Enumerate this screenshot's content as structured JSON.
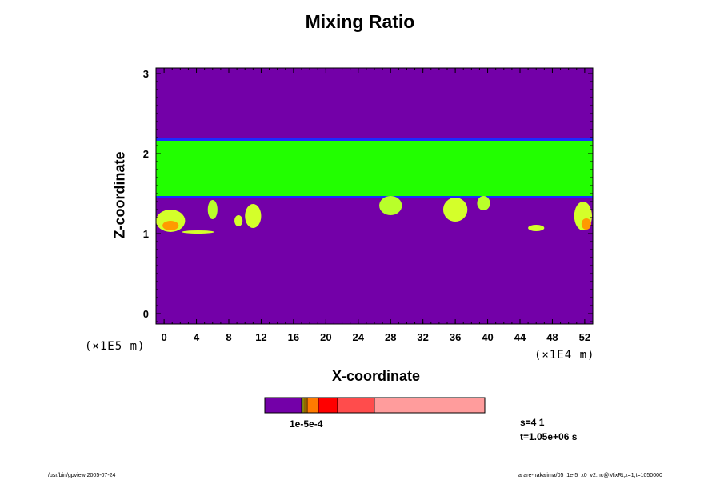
{
  "chart_data": {
    "type": "heatmap",
    "title": "Mixing Ratio",
    "xlabel": "X-coordinate",
    "ylabel": "Z-coordinate",
    "x_unit": "(×1E4 m)",
    "y_unit": "(×1E5 m)",
    "xlim": [
      -1,
      53
    ],
    "ylim": [
      -0.13,
      3.07
    ],
    "x_ticks": [
      0,
      4,
      8,
      12,
      16,
      20,
      24,
      28,
      32,
      36,
      40,
      44,
      48,
      52
    ],
    "x_tick_labels": [
      "0",
      "4",
      "8",
      "12",
      "16",
      "20",
      "24",
      "28",
      "32",
      "36",
      "40",
      "44",
      "48",
      "52"
    ],
    "y_ticks": [
      0,
      1,
      2,
      3
    ],
    "y_tick_labels": [
      "0",
      "1",
      "2",
      "3"
    ],
    "background_color": "#7300a8",
    "band": {
      "z_bottom": 1.46,
      "z_top": 2.17,
      "color": "#22ff00",
      "edge_color": "#1a2cff"
    },
    "blobs": [
      {
        "x": 0.8,
        "z": 1.16,
        "rx": 1.8,
        "rz": 0.14,
        "color": "#d4ff2a"
      },
      {
        "x": 0.8,
        "z": 1.1,
        "rx": 1.0,
        "rz": 0.06,
        "color": "#ff9a00"
      },
      {
        "x": 4.2,
        "z": 1.02,
        "rx": 2.0,
        "rz": 0.02,
        "color": "#d4ff2a"
      },
      {
        "x": 11.0,
        "z": 1.22,
        "rx": 1.0,
        "rz": 0.15,
        "color": "#d4ff2a"
      },
      {
        "x": 9.2,
        "z": 1.16,
        "rx": 0.5,
        "rz": 0.07,
        "color": "#d4ff2a"
      },
      {
        "x": 6.0,
        "z": 1.3,
        "rx": 0.6,
        "rz": 0.12,
        "color": "#b9ff2a"
      },
      {
        "x": 28.0,
        "z": 1.35,
        "rx": 1.4,
        "rz": 0.12,
        "color": "#b9ff2a"
      },
      {
        "x": 36.0,
        "z": 1.3,
        "rx": 1.5,
        "rz": 0.15,
        "color": "#d4ff2a"
      },
      {
        "x": 39.5,
        "z": 1.38,
        "rx": 0.8,
        "rz": 0.09,
        "color": "#b9ff2a"
      },
      {
        "x": 46.0,
        "z": 1.07,
        "rx": 1.0,
        "rz": 0.04,
        "color": "#d4ff2a"
      },
      {
        "x": 51.8,
        "z": 1.22,
        "rx": 1.1,
        "rz": 0.18,
        "color": "#d4ff2a"
      },
      {
        "x": 52.2,
        "z": 1.12,
        "rx": 0.6,
        "rz": 0.07,
        "color": "#ff9a00"
      }
    ],
    "colorbar": {
      "label": "1e-5e-4",
      "segments": [
        {
          "color": "#7300a8",
          "weight": 46
        },
        {
          "color": "#d4ff2a",
          "weight": 2
        },
        {
          "color": "#ffd400",
          "weight": 2
        },
        {
          "color": "#ffa200",
          "weight": 3
        },
        {
          "color": "#ff7a00",
          "weight": 14
        },
        {
          "color": "#ff0000",
          "weight": 24
        },
        {
          "color": "#ff4c4c",
          "weight": 46
        },
        {
          "color": "#ff9c9c",
          "weight": 138
        }
      ]
    }
  },
  "stamp": {
    "s": "s=4 1",
    "t": "t=1.05e+06 s"
  },
  "footer": {
    "left": "/usr/bin/gpview 2005-07-24",
    "right": "arare-nakajima/05_1e-5_x0_v2.nc@MixRt,x=1,t=1050000"
  }
}
